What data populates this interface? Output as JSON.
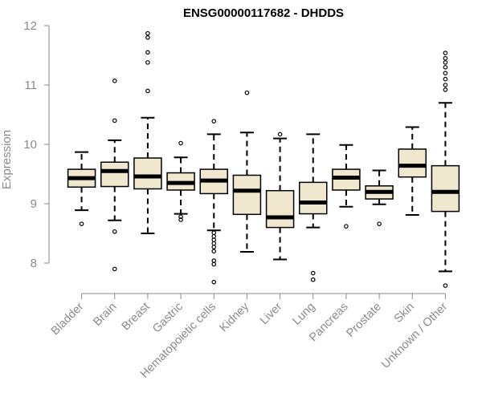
{
  "chart_data": {
    "type": "boxplot",
    "title": "ENSG00000117682 - DHDDS",
    "xlabel": "",
    "ylabel": "Expression",
    "ylim": [
      7.4,
      12.1
    ],
    "yticks": [
      8,
      9,
      10,
      11,
      12
    ],
    "grid": false,
    "box_fill": "#efe8cf",
    "box_stroke": "#000000",
    "categories": [
      "Bladder",
      "Brain",
      "Breast",
      "Gastric",
      "Hematopoietic cells",
      "Kidney",
      "Liver",
      "Lung",
      "Pancreas",
      "Prostate",
      "Skin",
      "Unknown / Other"
    ],
    "boxes": [
      {
        "whisker_low": 8.89,
        "q1": 9.28,
        "median": 9.43,
        "q3": 9.58,
        "whisker_high": 9.87,
        "outliers": [
          8.66
        ]
      },
      {
        "whisker_low": 8.72,
        "q1": 9.29,
        "median": 9.55,
        "q3": 9.7,
        "whisker_high": 10.07,
        "outliers": [
          7.9,
          8.53,
          10.4,
          11.07
        ]
      },
      {
        "whisker_low": 8.5,
        "q1": 9.25,
        "median": 9.46,
        "q3": 9.77,
        "whisker_high": 10.45,
        "outliers": [
          10.9,
          11.38,
          11.55,
          11.8,
          11.87
        ]
      },
      {
        "whisker_low": 8.83,
        "q1": 9.23,
        "median": 9.35,
        "q3": 9.52,
        "whisker_high": 9.78,
        "outliers": [
          8.73,
          8.78,
          10.02
        ]
      },
      {
        "whisker_low": 8.55,
        "q1": 9.17,
        "median": 9.39,
        "q3": 9.58,
        "whisker_high": 10.17,
        "outliers": [
          7.68,
          7.98,
          8.04,
          8.2,
          8.27,
          8.33,
          8.39,
          8.45,
          8.51,
          10.39
        ]
      },
      {
        "whisker_low": 8.19,
        "q1": 8.82,
        "median": 9.22,
        "q3": 9.48,
        "whisker_high": 10.2,
        "outliers": [
          10.87
        ]
      },
      {
        "whisker_low": 8.06,
        "q1": 8.6,
        "median": 8.77,
        "q3": 9.22,
        "whisker_high": 10.1,
        "outliers": [
          10.17
        ]
      },
      {
        "whisker_low": 8.6,
        "q1": 8.83,
        "median": 9.02,
        "q3": 9.36,
        "whisker_high": 10.17,
        "outliers": [
          7.72,
          7.83
        ]
      },
      {
        "whisker_low": 8.95,
        "q1": 9.23,
        "median": 9.44,
        "q3": 9.58,
        "whisker_high": 9.99,
        "outliers": [
          8.62
        ]
      },
      {
        "whisker_low": 8.99,
        "q1": 9.08,
        "median": 9.2,
        "q3": 9.3,
        "whisker_high": 9.56,
        "outliers": [
          8.66
        ]
      },
      {
        "whisker_low": 8.81,
        "q1": 9.45,
        "median": 9.64,
        "q3": 9.92,
        "whisker_high": 10.29,
        "outliers": []
      },
      {
        "whisker_low": 7.86,
        "q1": 8.87,
        "median": 9.2,
        "q3": 9.64,
        "whisker_high": 10.7,
        "outliers": [
          7.62,
          10.92,
          11.0,
          11.1,
          11.2,
          11.3,
          11.38,
          11.45,
          11.54
        ]
      }
    ]
  }
}
